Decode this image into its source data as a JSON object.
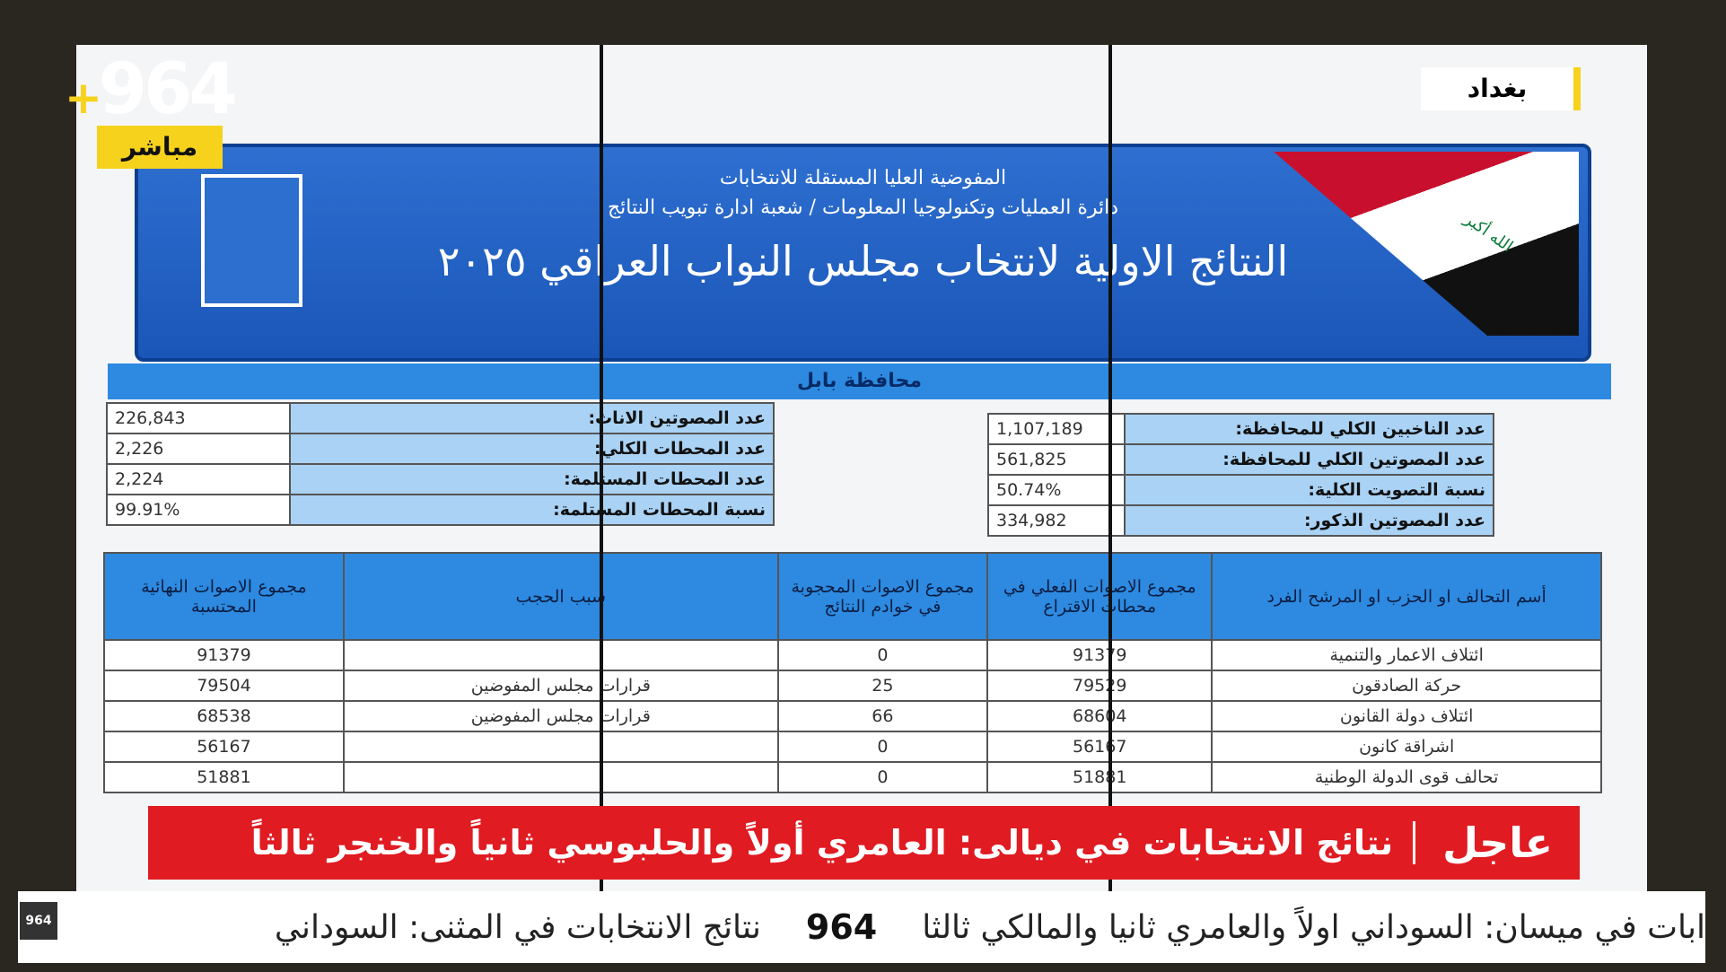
{
  "overlay": {
    "logo": "964",
    "logo_plus": "+",
    "live": "مباشر",
    "location": "بغداد"
  },
  "header": {
    "org_line1": "المفوضية العليا المستقلة للانتخابات",
    "org_line2": "دائرة العمليات وتكنولوجيا المعلومات / شعبة ادارة تبويب النتائج",
    "title": "النتائج الاولية لانتخاب مجلس النواب العراقي ٢٠٢٥",
    "flag_text": "الله أكبر"
  },
  "province": "محافظة بابل",
  "summary_right": [
    [
      "عدد الناخبين الكلي للمحافظة:",
      "1,107,189"
    ],
    [
      "عدد المصوتين الكلي للمحافظة:",
      "561,825"
    ],
    [
      "نسبة التصويت الكلية:",
      "50.74%"
    ],
    [
      "عدد المصوتين الذكور:",
      "334,982"
    ]
  ],
  "summary_left": [
    [
      "عدد المصوتين الاناث:",
      "226,843"
    ],
    [
      "عدد المحطات الكلي:",
      "2,226"
    ],
    [
      "عدد المحطات المستلمة:",
      "2,224"
    ],
    [
      "نسبة المحطات المستلمة:",
      "99.91%"
    ]
  ],
  "table": {
    "headers": [
      "أسم التحالف او الحزب او المرشح الفرد",
      "مجموع الاصوات الفعلي في محطات الاقتراع",
      "مجموع الاصوات المحجوبة في خوادم النتائج",
      "سبب الحجب",
      "مجموع الاصوات النهائية المحتسبة"
    ],
    "rows": [
      [
        "ائتلاف الاعمار والتنمية",
        91379,
        0,
        null,
        91379
      ],
      [
        "حركة الصادقون",
        79529,
        25,
        "قرارات مجلس المفوضين",
        79504
      ],
      [
        "ائتلاف دولة القانون",
        68604,
        66,
        "قرارات مجلس المفوضين",
        68538
      ],
      [
        "اشراقة كانون",
        56167,
        0,
        null,
        56167
      ],
      [
        "تحالف قوى الدولة الوطنية",
        51881,
        0,
        null,
        51881
      ]
    ]
  },
  "breaking": {
    "label": "عاجل",
    "headline": "نتائج الانتخابات في ديالى: العامري أولاً والحلبوسي ثانياً والخنجر ثالثاً"
  },
  "ticker": {
    "logo": "964",
    "items": [
      "ابات في ميسان: السوداني اولاً والعامري ثانيا والمالكي ثالثا",
      "نتائج الانتخابات في المثنى: السوداني"
    ]
  }
}
